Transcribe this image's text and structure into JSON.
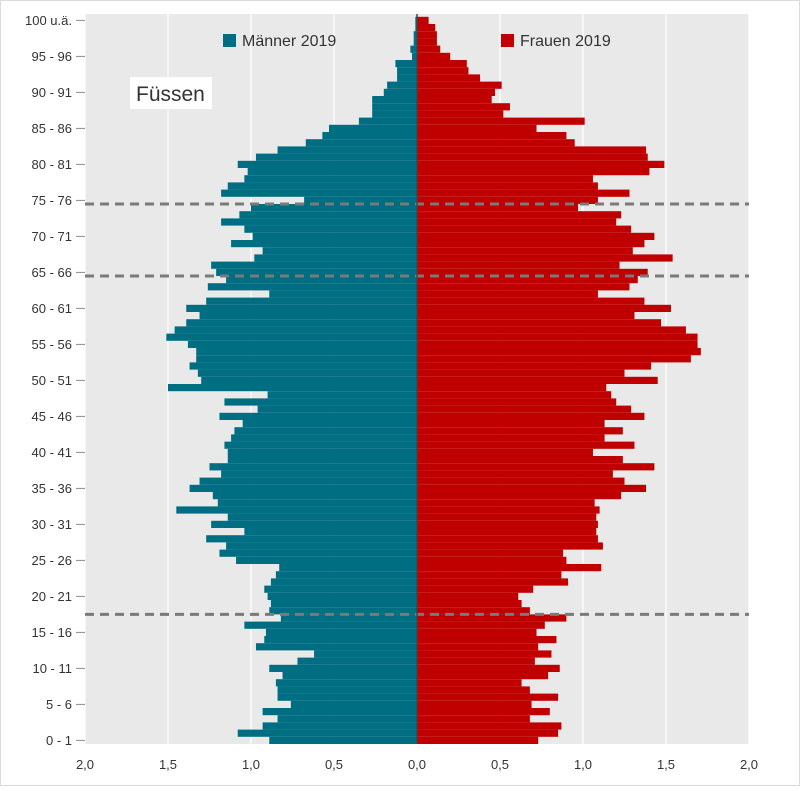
{
  "chart_data": {
    "type": "bar",
    "orientation": "horizontal",
    "chart_subtype": "population-pyramid",
    "place_label": "Füssen",
    "xlim": [
      -2.0,
      2.0
    ],
    "x_ticks": [
      -2.0,
      -1.5,
      -1.0,
      -0.5,
      0.0,
      0.5,
      1.0,
      1.5,
      2.0
    ],
    "x_tick_labels": [
      "2,0",
      "1,5",
      "1,0",
      "0,5",
      "0,0",
      "0,5",
      "1,0",
      "1,5",
      "2,0"
    ],
    "y_tick_labels": [
      {
        "age": 0,
        "label": "0 - 1"
      },
      {
        "age": 5,
        "label": "5 - 6"
      },
      {
        "age": 10,
        "label": "10 - 11"
      },
      {
        "age": 15,
        "label": "15 - 16"
      },
      {
        "age": 20,
        "label": "20 - 21"
      },
      {
        "age": 25,
        "label": "25 - 26"
      },
      {
        "age": 30,
        "label": "30 - 31"
      },
      {
        "age": 35,
        "label": "35 - 36"
      },
      {
        "age": 40,
        "label": "40 - 41"
      },
      {
        "age": 45,
        "label": "45 - 46"
      },
      {
        "age": 50,
        "label": "50 - 51"
      },
      {
        "age": 55,
        "label": "55 - 56"
      },
      {
        "age": 60,
        "label": "60 - 61"
      },
      {
        "age": 65,
        "label": "65 - 66"
      },
      {
        "age": 70,
        "label": "70 - 71"
      },
      {
        "age": 75,
        "label": "75 - 76"
      },
      {
        "age": 80,
        "label": "80 - 81"
      },
      {
        "age": 85,
        "label": "85 - 86"
      },
      {
        "age": 90,
        "label": "90 - 91"
      },
      {
        "age": 95,
        "label": "95 - 96"
      },
      {
        "age": 100,
        "label": "100 u.ä."
      }
    ],
    "legend_position": "top",
    "grid": "vertical",
    "reference_lines_age": [
      17.5,
      64.5,
      74.5
    ],
    "series": [
      {
        "name": "Männer 2019",
        "color": "#006e82",
        "side": "left",
        "values": [
          0.89,
          1.08,
          0.93,
          0.84,
          0.93,
          0.76,
          0.84,
          0.84,
          0.85,
          0.81,
          0.89,
          0.72,
          0.62,
          0.97,
          0.92,
          0.91,
          1.04,
          0.82,
          0.89,
          0.88,
          0.9,
          0.92,
          0.88,
          0.85,
          0.83,
          1.09,
          1.19,
          1.15,
          1.27,
          1.04,
          1.24,
          1.14,
          1.45,
          1.2,
          1.23,
          1.37,
          1.31,
          1.18,
          1.25,
          1.14,
          1.14,
          1.16,
          1.12,
          1.1,
          1.05,
          1.19,
          0.96,
          1.16,
          0.9,
          1.5,
          1.3,
          1.32,
          1.37,
          1.33,
          1.33,
          1.38,
          1.51,
          1.46,
          1.39,
          1.31,
          1.39,
          1.27,
          0.89,
          1.26,
          1.15,
          1.21,
          1.24,
          0.98,
          0.93,
          1.12,
          0.99,
          1.04,
          1.18,
          1.07,
          1.0,
          0.68,
          1.18,
          1.14,
          1.04,
          1.02,
          1.08,
          0.97,
          0.84,
          0.67,
          0.57,
          0.53,
          0.35,
          0.27,
          0.27,
          0.27,
          0.2,
          0.18,
          0.12,
          0.12,
          0.13,
          0.03,
          0.04,
          0.02,
          0.02,
          0.01,
          0.01
        ]
      },
      {
        "name": "Frauen 2019",
        "color": "#c00000",
        "side": "right",
        "values": [
          0.73,
          0.85,
          0.87,
          0.68,
          0.8,
          0.69,
          0.85,
          0.68,
          0.63,
          0.79,
          0.86,
          0.71,
          0.81,
          0.73,
          0.84,
          0.72,
          0.77,
          0.9,
          0.68,
          0.63,
          0.61,
          0.7,
          0.91,
          0.87,
          1.11,
          0.9,
          0.88,
          1.12,
          1.09,
          1.08,
          1.09,
          1.08,
          1.1,
          1.07,
          1.23,
          1.38,
          1.25,
          1.18,
          1.43,
          1.24,
          1.06,
          1.31,
          1.13,
          1.24,
          1.13,
          1.37,
          1.29,
          1.2,
          1.17,
          1.14,
          1.45,
          1.25,
          1.41,
          1.65,
          1.71,
          1.69,
          1.69,
          1.62,
          1.47,
          1.31,
          1.53,
          1.37,
          1.09,
          1.28,
          1.33,
          1.39,
          1.22,
          1.54,
          1.3,
          1.37,
          1.43,
          1.29,
          1.2,
          1.23,
          0.97,
          1.09,
          1.28,
          1.09,
          1.06,
          1.4,
          1.49,
          1.39,
          1.38,
          0.95,
          0.9,
          0.72,
          1.01,
          0.52,
          0.56,
          0.45,
          0.47,
          0.51,
          0.38,
          0.31,
          0.3,
          0.2,
          0.14,
          0.12,
          0.12,
          0.11,
          0.07
        ]
      }
    ]
  }
}
